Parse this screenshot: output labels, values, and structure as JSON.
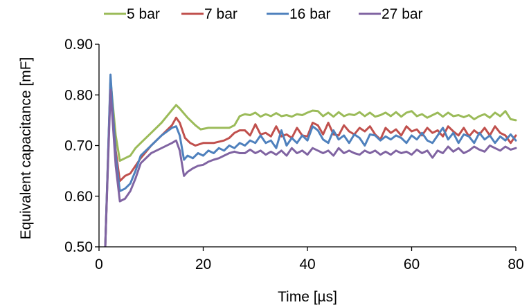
{
  "chart_data": {
    "type": "line",
    "xlabel": "Time [µs]",
    "ylabel": "Equivalent capacitance [mF]",
    "xlim": [
      0,
      80
    ],
    "ylim": [
      0.5,
      0.9
    ],
    "x_ticks": [
      "0",
      "20",
      "40",
      "60",
      "80"
    ],
    "y_ticks": [
      "0.50",
      "0.60",
      "0.70",
      "0.80",
      "0.90"
    ],
    "grid": false,
    "legend_position": "top",
    "series": [
      {
        "name": "5 bar",
        "color": "#9BBB59",
        "points": [
          [
            1.2,
            0.5
          ],
          [
            2.2,
            0.83
          ],
          [
            3.2,
            0.72
          ],
          [
            4,
            0.67
          ],
          [
            5,
            0.675
          ],
          [
            6,
            0.68
          ],
          [
            7,
            0.695
          ],
          [
            8,
            0.705
          ],
          [
            10,
            0.725
          ],
          [
            12,
            0.745
          ],
          [
            14,
            0.77
          ],
          [
            14.8,
            0.78
          ],
          [
            15.5,
            0.773
          ],
          [
            17,
            0.755
          ],
          [
            18.5,
            0.74
          ],
          [
            19.5,
            0.732
          ],
          [
            21,
            0.735
          ],
          [
            23,
            0.735
          ],
          [
            25,
            0.735
          ],
          [
            26,
            0.74
          ],
          [
            27,
            0.758
          ],
          [
            28,
            0.762
          ],
          [
            29,
            0.76
          ],
          [
            30,
            0.765
          ],
          [
            31,
            0.757
          ],
          [
            32,
            0.762
          ],
          [
            33,
            0.758
          ],
          [
            34,
            0.764
          ],
          [
            35,
            0.758
          ],
          [
            36,
            0.76
          ],
          [
            37,
            0.757
          ],
          [
            38,
            0.762
          ],
          [
            39,
            0.76
          ],
          [
            40,
            0.765
          ],
          [
            41,
            0.769
          ],
          [
            42,
            0.768
          ],
          [
            43,
            0.758
          ],
          [
            44,
            0.765
          ],
          [
            45,
            0.757
          ],
          [
            46,
            0.766
          ],
          [
            47,
            0.758
          ],
          [
            48,
            0.762
          ],
          [
            49,
            0.76
          ],
          [
            50,
            0.766
          ],
          [
            51,
            0.758
          ],
          [
            52,
            0.765
          ],
          [
            53,
            0.757
          ],
          [
            54,
            0.76
          ],
          [
            55,
            0.765
          ],
          [
            56,
            0.758
          ],
          [
            57,
            0.766
          ],
          [
            58,
            0.757
          ],
          [
            59,
            0.765
          ],
          [
            60,
            0.768
          ],
          [
            61,
            0.758
          ],
          [
            62,
            0.762
          ],
          [
            63,
            0.755
          ],
          [
            64,
            0.76
          ],
          [
            65,
            0.765
          ],
          [
            66,
            0.757
          ],
          [
            67,
            0.765
          ],
          [
            68,
            0.758
          ],
          [
            69,
            0.76
          ],
          [
            70,
            0.756
          ],
          [
            71,
            0.76
          ],
          [
            72,
            0.752
          ],
          [
            73,
            0.758
          ],
          [
            74,
            0.762
          ],
          [
            75,
            0.755
          ],
          [
            76,
            0.765
          ],
          [
            77,
            0.758
          ],
          [
            78,
            0.768
          ],
          [
            79,
            0.752
          ],
          [
            80,
            0.75
          ]
        ]
      },
      {
        "name": "7 bar",
        "color": "#C0504D",
        "points": [
          [
            1.2,
            0.5
          ],
          [
            2.2,
            0.83
          ],
          [
            3.2,
            0.69
          ],
          [
            4,
            0.63
          ],
          [
            5,
            0.64
          ],
          [
            6,
            0.645
          ],
          [
            7,
            0.66
          ],
          [
            8,
            0.675
          ],
          [
            10,
            0.7
          ],
          [
            12,
            0.72
          ],
          [
            14,
            0.74
          ],
          [
            14.8,
            0.755
          ],
          [
            15.5,
            0.745
          ],
          [
            16.5,
            0.715
          ],
          [
            17.5,
            0.705
          ],
          [
            18.5,
            0.7
          ],
          [
            20,
            0.705
          ],
          [
            22,
            0.705
          ],
          [
            24,
            0.71
          ],
          [
            25,
            0.715
          ],
          [
            26,
            0.725
          ],
          [
            27,
            0.73
          ],
          [
            28,
            0.73
          ],
          [
            29,
            0.72
          ],
          [
            30,
            0.742
          ],
          [
            31,
            0.722
          ],
          [
            32,
            0.725
          ],
          [
            33,
            0.718
          ],
          [
            34,
            0.738
          ],
          [
            35,
            0.718
          ],
          [
            36,
            0.722
          ],
          [
            37,
            0.715
          ],
          [
            38,
            0.735
          ],
          [
            39,
            0.72
          ],
          [
            40,
            0.718
          ],
          [
            41,
            0.745
          ],
          [
            42,
            0.74
          ],
          [
            43,
            0.722
          ],
          [
            44,
            0.745
          ],
          [
            45,
            0.722
          ],
          [
            46,
            0.72
          ],
          [
            47,
            0.74
          ],
          [
            48,
            0.728
          ],
          [
            49,
            0.722
          ],
          [
            50,
            0.735
          ],
          [
            51,
            0.728
          ],
          [
            52,
            0.738
          ],
          [
            53,
            0.722
          ],
          [
            54,
            0.712
          ],
          [
            55,
            0.735
          ],
          [
            56,
            0.725
          ],
          [
            57,
            0.732
          ],
          [
            58,
            0.72
          ],
          [
            59,
            0.738
          ],
          [
            60,
            0.728
          ],
          [
            61,
            0.732
          ],
          [
            62,
            0.72
          ],
          [
            63,
            0.735
          ],
          [
            64,
            0.725
          ],
          [
            65,
            0.73
          ],
          [
            66,
            0.718
          ],
          [
            67,
            0.738
          ],
          [
            68,
            0.728
          ],
          [
            69,
            0.72
          ],
          [
            70,
            0.735
          ],
          [
            71,
            0.718
          ],
          [
            72,
            0.73
          ],
          [
            73,
            0.722
          ],
          [
            74,
            0.735
          ],
          [
            75,
            0.72
          ],
          [
            76,
            0.738
          ],
          [
            77,
            0.725
          ],
          [
            78,
            0.72
          ],
          [
            79,
            0.705
          ],
          [
            80,
            0.72
          ]
        ]
      },
      {
        "name": "16 bar",
        "color": "#4F81BD",
        "points": [
          [
            1.2,
            0.5
          ],
          [
            2.2,
            0.84
          ],
          [
            3.2,
            0.68
          ],
          [
            4,
            0.61
          ],
          [
            5,
            0.615
          ],
          [
            6,
            0.625
          ],
          [
            7,
            0.65
          ],
          [
            8,
            0.68
          ],
          [
            10,
            0.7
          ],
          [
            12,
            0.72
          ],
          [
            14,
            0.735
          ],
          [
            14.8,
            0.738
          ],
          [
            15.5,
            0.72
          ],
          [
            16.3,
            0.672
          ],
          [
            17,
            0.68
          ],
          [
            18,
            0.675
          ],
          [
            19,
            0.685
          ],
          [
            20,
            0.68
          ],
          [
            21,
            0.69
          ],
          [
            22,
            0.685
          ],
          [
            23,
            0.695
          ],
          [
            24,
            0.69
          ],
          [
            25,
            0.7
          ],
          [
            26,
            0.695
          ],
          [
            27,
            0.705
          ],
          [
            28,
            0.7
          ],
          [
            29,
            0.71
          ],
          [
            30,
            0.705
          ],
          [
            31,
            0.72
          ],
          [
            32,
            0.705
          ],
          [
            33,
            0.71
          ],
          [
            34,
            0.695
          ],
          [
            35,
            0.73
          ],
          [
            36,
            0.7
          ],
          [
            37,
            0.715
          ],
          [
            38,
            0.705
          ],
          [
            39,
            0.72
          ],
          [
            40,
            0.71
          ],
          [
            41,
            0.738
          ],
          [
            42,
            0.73
          ],
          [
            43,
            0.712
          ],
          [
            44,
            0.705
          ],
          [
            45,
            0.73
          ],
          [
            46,
            0.712
          ],
          [
            47,
            0.72
          ],
          [
            48,
            0.705
          ],
          [
            49,
            0.722
          ],
          [
            50,
            0.715
          ],
          [
            51,
            0.7
          ],
          [
            52,
            0.722
          ],
          [
            53,
            0.72
          ],
          [
            54,
            0.71
          ],
          [
            55,
            0.718
          ],
          [
            56,
            0.712
          ],
          [
            57,
            0.72
          ],
          [
            58,
            0.715
          ],
          [
            59,
            0.705
          ],
          [
            60,
            0.72
          ],
          [
            61,
            0.712
          ],
          [
            62,
            0.725
          ],
          [
            63,
            0.71
          ],
          [
            64,
            0.705
          ],
          [
            65,
            0.72
          ],
          [
            66,
            0.735
          ],
          [
            67,
            0.712
          ],
          [
            68,
            0.725
          ],
          [
            69,
            0.705
          ],
          [
            70,
            0.722
          ],
          [
            71,
            0.718
          ],
          [
            72,
            0.705
          ],
          [
            73,
            0.725
          ],
          [
            74,
            0.712
          ],
          [
            75,
            0.72
          ],
          [
            76,
            0.705
          ],
          [
            77,
            0.718
          ],
          [
            78,
            0.71
          ],
          [
            79,
            0.722
          ],
          [
            80,
            0.71
          ]
        ]
      },
      {
        "name": "27 bar",
        "color": "#8064A2",
        "points": [
          [
            1.2,
            0.5
          ],
          [
            2.2,
            0.81
          ],
          [
            3.2,
            0.66
          ],
          [
            4,
            0.59
          ],
          [
            5,
            0.595
          ],
          [
            6,
            0.61
          ],
          [
            7,
            0.635
          ],
          [
            8,
            0.665
          ],
          [
            10,
            0.685
          ],
          [
            12,
            0.695
          ],
          [
            14,
            0.705
          ],
          [
            14.8,
            0.71
          ],
          [
            15.5,
            0.69
          ],
          [
            16.3,
            0.64
          ],
          [
            17,
            0.648
          ],
          [
            18,
            0.655
          ],
          [
            19,
            0.66
          ],
          [
            20,
            0.662
          ],
          [
            21,
            0.668
          ],
          [
            22,
            0.672
          ],
          [
            23,
            0.675
          ],
          [
            24,
            0.68
          ],
          [
            25,
            0.685
          ],
          [
            26,
            0.688
          ],
          [
            27,
            0.685
          ],
          [
            28,
            0.685
          ],
          [
            29,
            0.692
          ],
          [
            30,
            0.685
          ],
          [
            31,
            0.69
          ],
          [
            32,
            0.682
          ],
          [
            33,
            0.688
          ],
          [
            34,
            0.682
          ],
          [
            35,
            0.69
          ],
          [
            36,
            0.68
          ],
          [
            37,
            0.695
          ],
          [
            38,
            0.685
          ],
          [
            39,
            0.69
          ],
          [
            40,
            0.682
          ],
          [
            41,
            0.695
          ],
          [
            42,
            0.69
          ],
          [
            43,
            0.685
          ],
          [
            44,
            0.69
          ],
          [
            45,
            0.68
          ],
          [
            46,
            0.695
          ],
          [
            47,
            0.685
          ],
          [
            48,
            0.69
          ],
          [
            49,
            0.685
          ],
          [
            50,
            0.682
          ],
          [
            51,
            0.69
          ],
          [
            52,
            0.685
          ],
          [
            53,
            0.69
          ],
          [
            54,
            0.682
          ],
          [
            55,
            0.688
          ],
          [
            56,
            0.682
          ],
          [
            57,
            0.69
          ],
          [
            58,
            0.685
          ],
          [
            59,
            0.688
          ],
          [
            60,
            0.682
          ],
          [
            61,
            0.692
          ],
          [
            62,
            0.685
          ],
          [
            63,
            0.69
          ],
          [
            64,
            0.676
          ],
          [
            65,
            0.69
          ],
          [
            66,
            0.685
          ],
          [
            67,
            0.698
          ],
          [
            68,
            0.688
          ],
          [
            69,
            0.695
          ],
          [
            70,
            0.685
          ],
          [
            71,
            0.69
          ],
          [
            72,
            0.698
          ],
          [
            73,
            0.692
          ],
          [
            74,
            0.688
          ],
          [
            75,
            0.7
          ],
          [
            76,
            0.695
          ],
          [
            77,
            0.69
          ],
          [
            78,
            0.698
          ],
          [
            79,
            0.692
          ],
          [
            80,
            0.695
          ]
        ]
      }
    ]
  }
}
